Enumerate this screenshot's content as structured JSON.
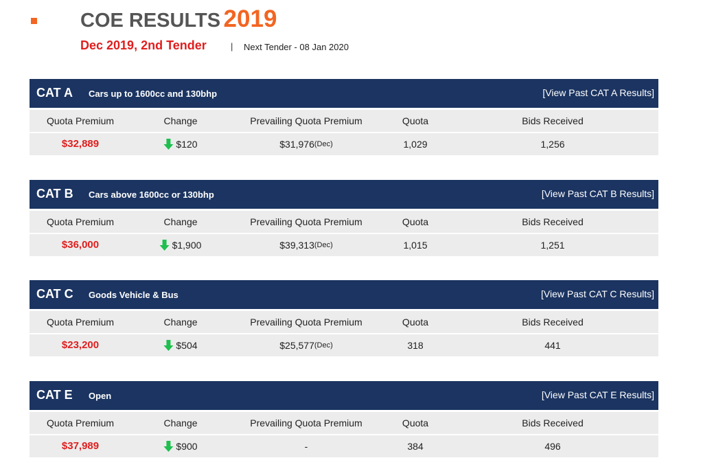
{
  "header": {
    "title": "COE RESULTS",
    "year": "2019",
    "subtitle": "Dec 2019, 2nd Tender",
    "separator": "|",
    "next_tender": "Next Tender - 08 Jan 2020"
  },
  "columns": [
    "Quota Premium",
    "Change",
    "Prevailing Quota Premium",
    "Quota",
    "Bids Received"
  ],
  "categories": [
    {
      "name": "CAT A",
      "description": "Cars up to 1600cc and 130bhp",
      "link": "[View Past CAT A Results]",
      "quota_premium": "$32,889",
      "change": "$120",
      "prevailing": "$31,976",
      "prevailing_month": "(Dec)",
      "quota": "1,029",
      "bids": "1,256"
    },
    {
      "name": "CAT B",
      "description": "Cars above 1600cc or 130bhp",
      "link": "[View Past CAT B Results]",
      "quota_premium": "$36,000",
      "change": "$1,900",
      "prevailing": "$39,313",
      "prevailing_month": "(Dec)",
      "quota": "1,015",
      "bids": "1,251"
    },
    {
      "name": "CAT C",
      "description": "Goods Vehicle & Bus",
      "link": "[View Past CAT C Results]",
      "quota_premium": "$23,200",
      "change": "$504",
      "prevailing": "$25,577",
      "prevailing_month": "(Dec)",
      "quota": "318",
      "bids": "441"
    },
    {
      "name": "CAT E",
      "description": "Open",
      "link": "[View Past CAT E Results]",
      "quota_premium": "$37,989",
      "change": "$900",
      "prevailing": "-",
      "quota": "384",
      "bids": "496"
    }
  ]
}
